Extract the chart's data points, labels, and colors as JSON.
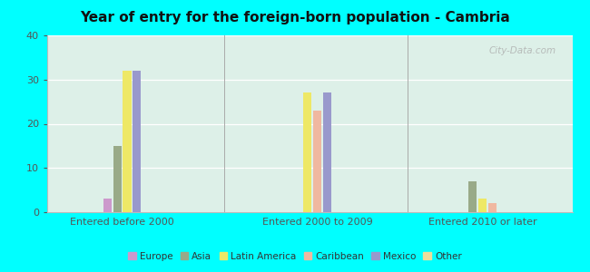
{
  "title": "Year of entry for the foreign-born population - Cambria",
  "background_color": "#00FFFF",
  "plot_bg_start": "#e8f5ee",
  "plot_bg_end": "#d0ece0",
  "groups": [
    "Entered before 2000",
    "Entered 2000 to 2009",
    "Entered 2010 or later"
  ],
  "categories": [
    "Europe",
    "Asia",
    "Latin America",
    "Caribbean",
    "Mexico",
    "Other"
  ],
  "colors": [
    "#cc99cc",
    "#99aa88",
    "#eee866",
    "#f0b8a0",
    "#9999cc",
    "#eedd99"
  ],
  "values": [
    [
      3,
      15,
      32,
      0,
      32,
      0
    ],
    [
      0,
      0,
      27,
      23,
      27,
      0
    ],
    [
      0,
      7,
      3,
      2,
      0,
      0
    ]
  ],
  "ylim": [
    0,
    40
  ],
  "yticks": [
    0,
    10,
    20,
    30,
    40
  ],
  "watermark": "City-Data.com",
  "bar_width": 0.055
}
